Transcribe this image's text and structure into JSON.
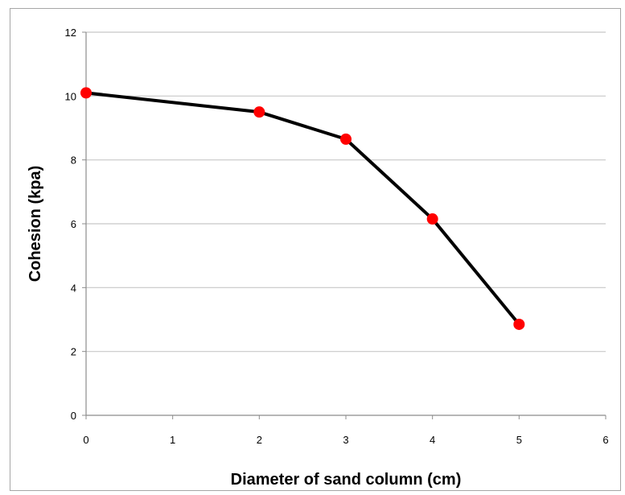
{
  "chart_data": {
    "type": "line",
    "title": "",
    "xlabel": "Diameter of sand column (cm)",
    "ylabel": "Cohesion (kpa)",
    "xlim": [
      0,
      6
    ],
    "ylim": [
      0,
      12
    ],
    "x_ticks": [
      "0",
      "1",
      "2",
      "3",
      "4",
      "5",
      "6"
    ],
    "y_ticks": [
      "0",
      "2",
      "4",
      "6",
      "8",
      "10",
      "12"
    ],
    "grid": "horizontal",
    "legend": "none",
    "series": [
      {
        "x": [
          0,
          2,
          3,
          4,
          5
        ],
        "y": [
          10.1,
          9.5,
          8.65,
          6.15,
          2.85
        ],
        "line_color": "#000000",
        "marker_color": "#ff0000"
      }
    ]
  }
}
